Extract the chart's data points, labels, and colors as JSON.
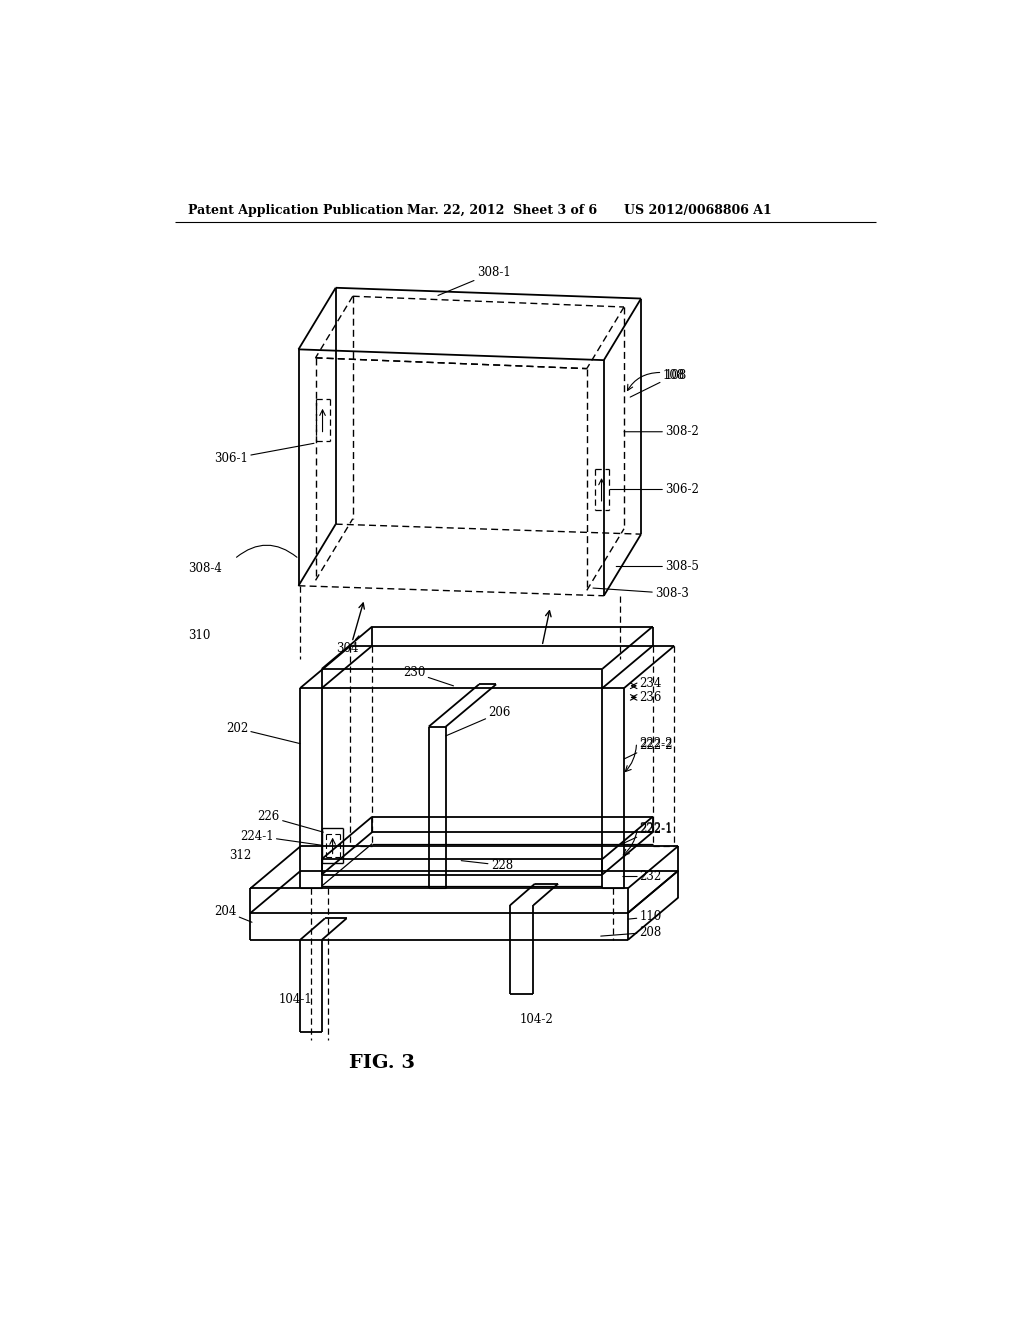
{
  "title_left": "Patent Application Publication",
  "title_mid": "Mar. 22, 2012  Sheet 3 of 6",
  "title_right": "US 2012/0068806 A1",
  "fig_label": "FIG. 3",
  "background_color": "#ffffff",
  "line_color": "#000000",
  "text_color": "#000000",
  "header_fontsize": 9,
  "label_fontsize": 8.5,
  "fig_label_fontsize": 14
}
